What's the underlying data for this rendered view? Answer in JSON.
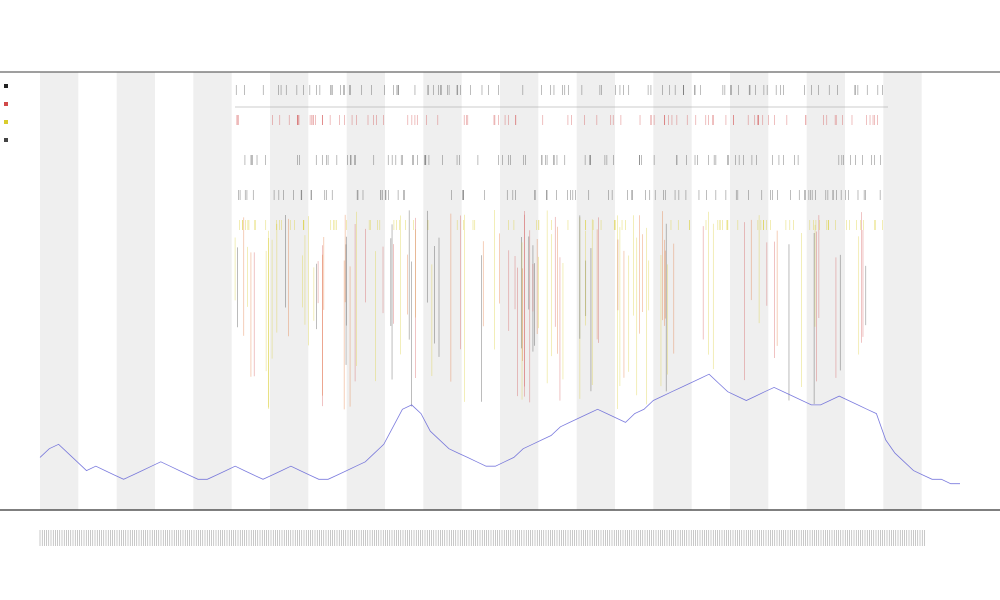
{
  "chart_data": {
    "type": "line",
    "title": "",
    "subtitle_lines": [
      "",
      ""
    ],
    "xlabel": "",
    "ylabel": "",
    "legend": {
      "placement": "top-left",
      "entries": [
        "",
        "",
        "",
        ""
      ]
    },
    "y_lim": [
      0,
      100
    ],
    "band_count": 24,
    "grid": false,
    "series": [
      {
        "color": "#5b5bd6",
        "values": [
          12,
          14,
          15,
          13,
          11,
          9,
          10,
          9,
          8,
          7,
          8,
          9,
          10,
          11,
          10,
          9,
          8,
          7,
          7,
          8,
          9,
          10,
          9,
          8,
          7,
          8,
          9,
          10,
          9,
          8,
          7,
          7,
          8,
          9,
          10,
          11,
          13,
          15,
          19,
          23,
          24,
          22,
          18,
          16,
          14,
          13,
          12,
          11,
          10,
          10,
          11,
          12,
          14,
          15,
          16,
          17,
          19,
          20,
          21,
          22,
          23,
          22,
          21,
          20,
          22,
          23,
          25,
          26,
          27,
          28,
          29,
          30,
          31,
          29,
          27,
          26,
          25,
          26,
          27,
          28,
          27,
          26,
          25,
          24,
          24,
          25,
          26,
          25,
          24,
          23,
          22,
          16,
          13,
          11,
          9,
          8,
          7,
          7,
          6,
          6
        ]
      }
    ],
    "spike_colors": [
      "#e26d2c",
      "#d9cc2c",
      "#d14a4a",
      "#333333"
    ]
  }
}
